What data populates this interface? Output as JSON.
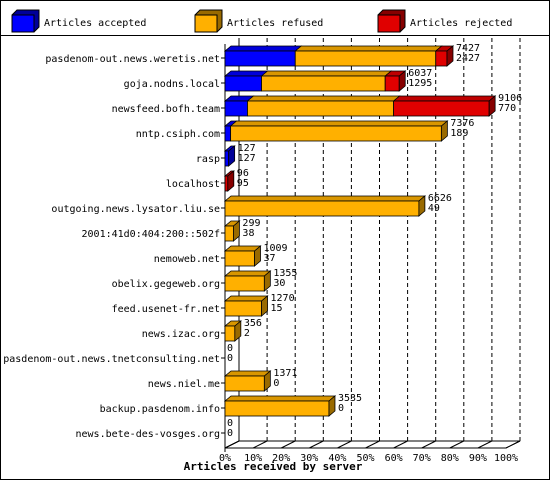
{
  "chart_data": {
    "type": "bar",
    "orientation": "horizontal",
    "stacked": true,
    "xlabel": "Articles received by server",
    "xlim": [
      0,
      100
    ],
    "xticks": [
      "0%",
      "10%",
      "20%",
      "30%",
      "40%",
      "50%",
      "60%",
      "70%",
      "80%",
      "90%",
      "100%"
    ],
    "grid": true,
    "legend_position": "top",
    "colors": {
      "accepted": "#0000ff",
      "refused": "#ffb000",
      "rejected": "#e00000"
    },
    "series": [
      {
        "name": "Articles accepted",
        "key": "accepted"
      },
      {
        "name": "Articles refused",
        "key": "refused"
      },
      {
        "name": "Articles rejected",
        "key": "rejected"
      }
    ],
    "categories": [
      {
        "name": "pasdenom-out.news.weretis.net",
        "accepted": 0.25,
        "refused": 0.5,
        "rejected": 0.04,
        "label_total": "7427",
        "label_second": "2427"
      },
      {
        "name": "goja.nodns.local",
        "accepted": 0.13,
        "refused": 0.44,
        "rejected": 0.05,
        "label_total": "6037",
        "label_second": "1295"
      },
      {
        "name": "newsfeed.bofh.team",
        "accepted": 0.08,
        "refused": 0.52,
        "rejected": 0.34,
        "label_total": "9106",
        "label_second": "770"
      },
      {
        "name": "nntp.csiph.com",
        "accepted": 0.02,
        "refused": 0.75,
        "rejected": 0.0,
        "label_total": "7376",
        "label_second": "189"
      },
      {
        "name": "rasp",
        "accepted": 0.013,
        "refused": 0.0,
        "rejected": 0.0,
        "label_total": "127",
        "label_second": "127"
      },
      {
        "name": "localhost",
        "accepted": 0.0,
        "refused": 0.0,
        "rejected": 0.01,
        "label_total": "96",
        "label_second": "95"
      },
      {
        "name": "outgoing.news.lysator.liu.se",
        "accepted": 0.0,
        "refused": 0.69,
        "rejected": 0.0,
        "label_total": "6626",
        "label_second": "49"
      },
      {
        "name": "2001:41d0:404:200::502f",
        "accepted": 0.0,
        "refused": 0.03,
        "rejected": 0.0,
        "label_total": "299",
        "label_second": "38"
      },
      {
        "name": "nemoweb.net",
        "accepted": 0.0,
        "refused": 0.105,
        "rejected": 0.0,
        "label_total": "1009",
        "label_second": "37"
      },
      {
        "name": "obelix.gegeweb.org",
        "accepted": 0.0,
        "refused": 0.14,
        "rejected": 0.0,
        "label_total": "1355",
        "label_second": "30"
      },
      {
        "name": "feed.usenet-fr.net",
        "accepted": 0.0,
        "refused": 0.13,
        "rejected": 0.0,
        "label_total": "1270",
        "label_second": "15"
      },
      {
        "name": "news.izac.org",
        "accepted": 0.0,
        "refused": 0.035,
        "rejected": 0.0,
        "label_total": "356",
        "label_second": "2"
      },
      {
        "name": "pasdenom-out.news.tnetconsulting.net",
        "accepted": 0.0,
        "refused": 0.0,
        "rejected": 0.0,
        "label_total": "0",
        "label_second": "0"
      },
      {
        "name": "news.niel.me",
        "accepted": 0.0,
        "refused": 0.14,
        "rejected": 0.0,
        "label_total": "1371",
        "label_second": "0"
      },
      {
        "name": "backup.pasdenom.info",
        "accepted": 0.0,
        "refused": 0.37,
        "rejected": 0.0,
        "label_total": "3535",
        "label_second": "0"
      },
      {
        "name": "news.bete-des-vosges.org",
        "accepted": 0.0,
        "refused": 0.0,
        "rejected": 0.0,
        "label_total": "0",
        "label_second": "0"
      }
    ]
  }
}
